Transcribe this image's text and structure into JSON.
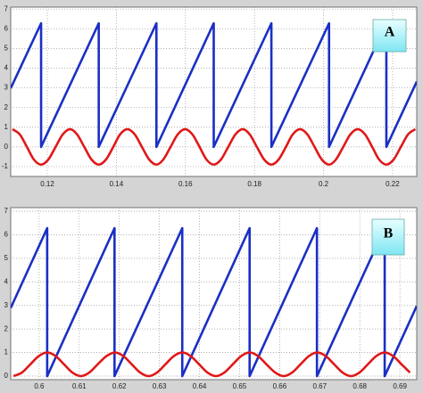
{
  "chart_data": [
    {
      "type": "line",
      "annotation": "A",
      "grid": true,
      "xlim": [
        0.1094,
        0.227
      ],
      "ylim": [
        -1.5,
        7.1
      ],
      "xticks": [
        0.12,
        0.14,
        0.16,
        0.18,
        0.2,
        0.22
      ],
      "yticks": [
        -1,
        0,
        1,
        2,
        3,
        4,
        5,
        6,
        7
      ],
      "series": [
        {
          "color": "#1a2fc4",
          "x": [
            0.1094,
            0.1182,
            0.1182,
            0.1349,
            0.1349,
            0.1516,
            0.1516,
            0.1682,
            0.1682,
            0.1849,
            0.1849,
            0.2016,
            0.2016,
            0.2182,
            0.2182,
            0.227
          ],
          "values": [
            2.98,
            6.28,
            0,
            6.28,
            0,
            6.28,
            0,
            6.28,
            0,
            6.28,
            0,
            6.28,
            0,
            6.28,
            0,
            3.32
          ]
        },
        {
          "color": "#e01818",
          "smooth": true,
          "x": [
            0.1099,
            0.112,
            0.1141,
            0.1161,
            0.1182,
            0.1203,
            0.1224,
            0.1245,
            0.1266,
            0.1286,
            0.1307,
            0.1328,
            0.1349,
            0.137,
            0.1391,
            0.1411,
            0.1432,
            0.1453,
            0.1474,
            0.1495,
            0.1516,
            0.1536,
            0.1557,
            0.1578,
            0.1599,
            0.162,
            0.1641,
            0.1661,
            0.1682,
            0.1703,
            0.1724,
            0.1745,
            0.1766,
            0.1786,
            0.1807,
            0.1828,
            0.1849,
            0.187,
            0.1891,
            0.1911,
            0.1932,
            0.1953,
            0.1974,
            0.1995,
            0.2016,
            0.2036,
            0.2057,
            0.2078,
            0.2099,
            0.212,
            0.2141,
            0.2161,
            0.2182,
            0.2203,
            0.2224,
            0.2245,
            0.2266
          ],
          "values": [
            0.9,
            0.64,
            0,
            -0.64,
            -0.9,
            -0.64,
            0,
            0.64,
            0.9,
            0.64,
            0,
            -0.64,
            -0.9,
            -0.64,
            0,
            0.64,
            0.9,
            0.64,
            0,
            -0.64,
            -0.9,
            -0.64,
            0,
            0.64,
            0.9,
            0.64,
            0,
            -0.64,
            -0.9,
            -0.64,
            0,
            0.64,
            0.9,
            0.64,
            0,
            -0.64,
            -0.9,
            -0.64,
            0,
            0.64,
            0.9,
            0.64,
            0,
            -0.64,
            -0.9,
            -0.64,
            0,
            0.64,
            0.9,
            0.64,
            0,
            -0.64,
            -0.9,
            -0.64,
            0,
            0.64,
            0.9
          ]
        }
      ]
    },
    {
      "type": "line",
      "annotation": "B",
      "grid": true,
      "xlim": [
        0.5929,
        0.6942
      ],
      "ylim": [
        -0.15,
        7.15
      ],
      "xticks": [
        0.6,
        0.61,
        0.62,
        0.63,
        0.64,
        0.65,
        0.66,
        0.67,
        0.68,
        0.69
      ],
      "yticks": [
        0,
        1,
        2,
        3,
        4,
        5,
        6,
        7
      ],
      "series": [
        {
          "color": "#1a2fc4",
          "x": [
            0.5929,
            0.602,
            0.602,
            0.6188,
            0.6188,
            0.6357,
            0.6357,
            0.6525,
            0.6525,
            0.6693,
            0.6693,
            0.6862,
            0.6862,
            0.6942
          ],
          "values": [
            2.89,
            6.28,
            0,
            6.28,
            0,
            6.28,
            0,
            6.28,
            0,
            6.28,
            0,
            6.28,
            0,
            2.98
          ]
        },
        {
          "color": "#e01818",
          "smooth": true,
          "x": [
            0.5936,
            0.5957,
            0.5978,
            0.5999,
            0.602,
            0.6041,
            0.6062,
            0.6083,
            0.6104,
            0.6125,
            0.6146,
            0.6168,
            0.6189,
            0.621,
            0.6231,
            0.6252,
            0.6273,
            0.6294,
            0.6315,
            0.6336,
            0.6357,
            0.6378,
            0.6399,
            0.642,
            0.6441,
            0.6462,
            0.6483,
            0.6504,
            0.6525,
            0.6546,
            0.6567,
            0.6589,
            0.661,
            0.6631,
            0.6652,
            0.6673,
            0.6694,
            0.6715,
            0.6736,
            0.6757,
            0.6778,
            0.6799,
            0.682,
            0.6841,
            0.6862,
            0.6883,
            0.6904,
            0.6925
          ],
          "values": [
            0,
            0.15,
            0.5,
            0.85,
            1,
            0.85,
            0.5,
            0.15,
            0,
            0.15,
            0.5,
            0.85,
            1,
            0.85,
            0.5,
            0.15,
            0,
            0.15,
            0.5,
            0.85,
            1,
            0.85,
            0.5,
            0.15,
            0,
            0.15,
            0.5,
            0.85,
            1,
            0.85,
            0.5,
            0.15,
            0,
            0.15,
            0.5,
            0.85,
            1,
            0.85,
            0.5,
            0.15,
            0,
            0.15,
            0.5,
            0.85,
            1,
            0.85,
            0.5,
            0.15
          ]
        }
      ]
    }
  ]
}
